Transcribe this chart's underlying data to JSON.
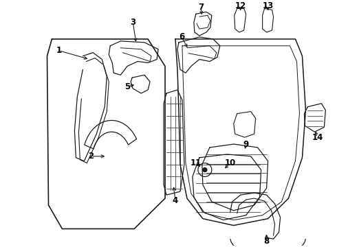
{
  "bg_color": "#ffffff",
  "line_color": "#1a1a1a",
  "fig_width": 4.9,
  "fig_height": 3.6,
  "dpi": 100,
  "label_fontsize": 8.5,
  "label_fontweight": "bold"
}
